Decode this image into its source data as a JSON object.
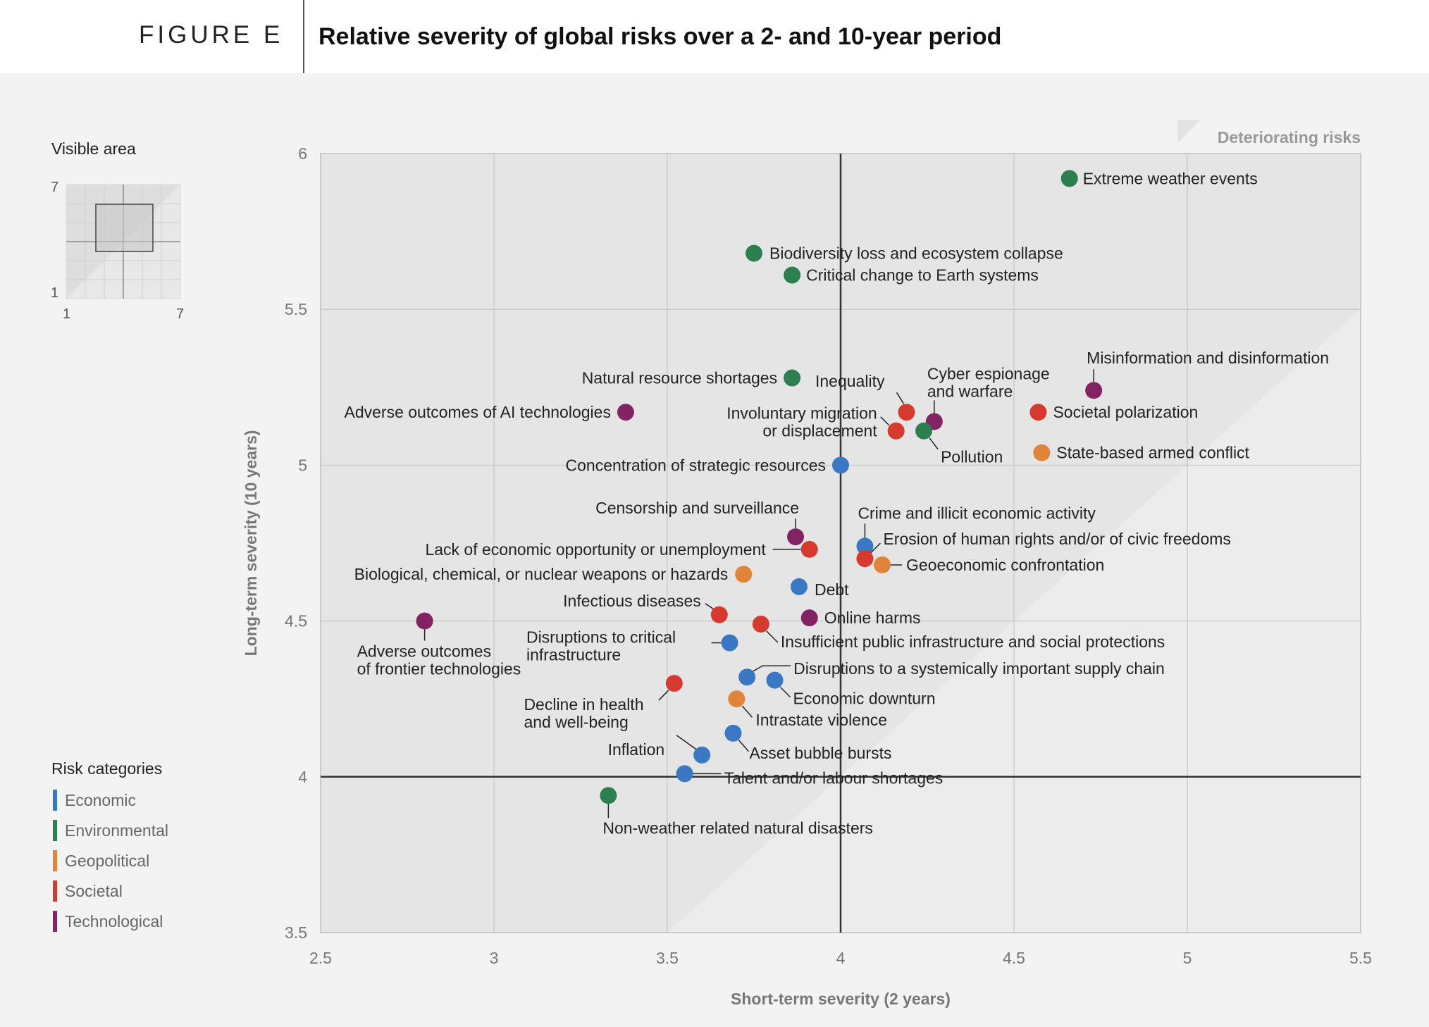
{
  "header": {
    "figure_label": "FIGURE E",
    "title": "Relative severity of global risks over a 2- and 10-year period"
  },
  "visible_area": {
    "title": "Visible area",
    "ticks": {
      "x_min": "1",
      "x_max": "7",
      "y_min": "1",
      "y_max": "7"
    }
  },
  "legend": {
    "title": "Risk categories",
    "items": [
      {
        "label": "Economic",
        "color": "#3a78c3"
      },
      {
        "label": "Environmental",
        "color": "#2e7f4f"
      },
      {
        "label": "Geopolitical",
        "color": "#e0843a"
      },
      {
        "label": "Societal",
        "color": "#d63a2f"
      },
      {
        "label": "Technological",
        "color": "#842363"
      }
    ]
  },
  "chart_data": {
    "type": "scatter",
    "xlabel": "Short-term severity (2 years)",
    "ylabel": "Long-term severity (10 years)",
    "xlim": [
      2.5,
      5.5
    ],
    "ylim": [
      3.5,
      6
    ],
    "xticks": [
      "2.5",
      "3",
      "3.5",
      "4",
      "4.5",
      "5",
      "5.5"
    ],
    "yticks": [
      "3.5",
      "4",
      "4.5",
      "5",
      "5.5",
      "6"
    ],
    "grid": true,
    "reference_lines": {
      "x": 4,
      "y": 4
    },
    "shaded_region": "Deteriorating risks",
    "colors": {
      "Economic": "#3a78c3",
      "Environmental": "#2e7f4f",
      "Geopolitical": "#e0843a",
      "Societal": "#d63a2f",
      "Technological": "#842363"
    },
    "points": [
      {
        "label": "Extreme weather events",
        "category": "Environmental",
        "x": 4.66,
        "y": 5.92
      },
      {
        "label": "Biodiversity loss and ecosystem collapse",
        "category": "Environmental",
        "x": 3.75,
        "y": 5.68
      },
      {
        "label": "Critical change to Earth systems",
        "category": "Environmental",
        "x": 3.86,
        "y": 5.61
      },
      {
        "label": "Natural resource shortages",
        "category": "Environmental",
        "x": 3.86,
        "y": 5.28
      },
      {
        "label": "Misinformation and disinformation",
        "category": "Technological",
        "x": 4.73,
        "y": 5.24
      },
      {
        "label": "Adverse outcomes of AI technologies",
        "category": "Technological",
        "x": 3.38,
        "y": 5.17
      },
      {
        "label": "Inequality",
        "category": "Societal",
        "x": 4.19,
        "y": 5.17
      },
      {
        "label": "Cyber espionage and warfare",
        "category": "Technological",
        "x": 4.27,
        "y": 5.14
      },
      {
        "label": "Involuntary migration or displacement",
        "category": "Societal",
        "x": 4.16,
        "y": 5.11
      },
      {
        "label": "Pollution",
        "category": "Environmental",
        "x": 4.24,
        "y": 5.11
      },
      {
        "label": "Societal polarization",
        "category": "Societal",
        "x": 4.57,
        "y": 5.17
      },
      {
        "label": "State-based armed conflict",
        "category": "Geopolitical",
        "x": 4.58,
        "y": 5.04
      },
      {
        "label": "Concentration of strategic resources",
        "category": "Economic",
        "x": 4.0,
        "y": 5.0
      },
      {
        "label": "Censorship and surveillance",
        "category": "Technological",
        "x": 3.87,
        "y": 4.77
      },
      {
        "label": "Crime and illicit economic activity",
        "category": "Economic",
        "x": 4.07,
        "y": 4.74
      },
      {
        "label": "Lack of economic opportunity or unemployment",
        "category": "Societal",
        "x": 3.91,
        "y": 4.73
      },
      {
        "label": "Erosion of human rights and/or of civic freedoms",
        "category": "Societal",
        "x": 4.07,
        "y": 4.7
      },
      {
        "label": "Geoeconomic confrontation",
        "category": "Geopolitical",
        "x": 4.12,
        "y": 4.68
      },
      {
        "label": "Biological, chemical, or nuclear weapons or hazards",
        "category": "Geopolitical",
        "x": 3.72,
        "y": 4.65
      },
      {
        "label": "Debt",
        "category": "Economic",
        "x": 3.88,
        "y": 4.61
      },
      {
        "label": "Infectious diseases",
        "category": "Societal",
        "x": 3.65,
        "y": 4.52
      },
      {
        "label": "Online harms",
        "category": "Technological",
        "x": 3.91,
        "y": 4.51
      },
      {
        "label": "Adverse outcomes of frontier technologies",
        "category": "Technological",
        "x": 2.8,
        "y": 4.5
      },
      {
        "label": "Insufficient public infrastructure and social protections",
        "category": "Societal",
        "x": 3.77,
        "y": 4.49
      },
      {
        "label": "Disruptions to critical infrastructure",
        "category": "Economic",
        "x": 3.68,
        "y": 4.43
      },
      {
        "label": "Disruptions to a systemically important supply chain",
        "category": "Economic",
        "x": 3.73,
        "y": 4.32
      },
      {
        "label": "Economic downturn",
        "category": "Economic",
        "x": 3.81,
        "y": 4.31
      },
      {
        "label": "Decline in health and well-being",
        "category": "Societal",
        "x": 3.52,
        "y": 4.3
      },
      {
        "label": "Intrastate violence",
        "category": "Geopolitical",
        "x": 3.7,
        "y": 4.25
      },
      {
        "label": "Asset bubble bursts",
        "category": "Economic",
        "x": 3.69,
        "y": 4.14
      },
      {
        "label": "Inflation",
        "category": "Economic",
        "x": 3.6,
        "y": 4.07
      },
      {
        "label": "Talent and/or labour shortages",
        "category": "Economic",
        "x": 3.55,
        "y": 4.01
      },
      {
        "label": "Non-weather related natural disasters",
        "category": "Environmental",
        "x": 3.33,
        "y": 3.94
      }
    ]
  }
}
